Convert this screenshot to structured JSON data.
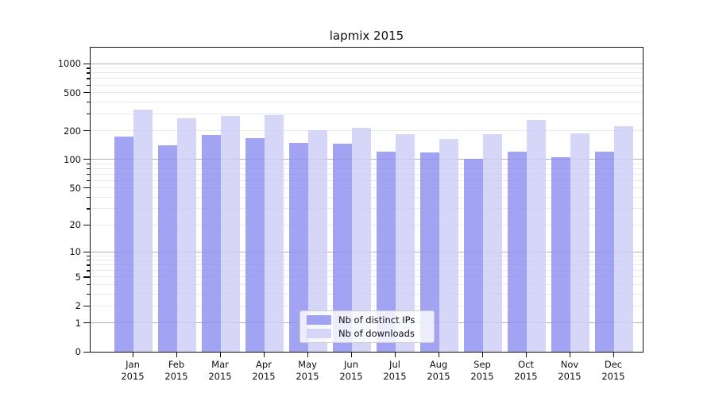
{
  "title": "lapmix 2015",
  "chart_data": {
    "type": "bar",
    "title": "lapmix 2015",
    "scale": "log1p",
    "xlabel": "",
    "ylabel": "",
    "ylim": [
      0,
      1500
    ],
    "grid": true,
    "legend_position": "lower center",
    "year": "2015",
    "categories": [
      "Jan",
      "Feb",
      "Mar",
      "Apr",
      "May",
      "Jun",
      "Jul",
      "Aug",
      "Sep",
      "Oct",
      "Nov",
      "Dec"
    ],
    "series": [
      {
        "name": "Nb of distinct IPs",
        "color": "#8f8ff0",
        "values": [
          172,
          141,
          181,
          168,
          148,
          146,
          121,
          118,
          101,
          121,
          105,
          120
        ]
      },
      {
        "name": "Nb of downloads",
        "color": "#cdcdf6",
        "values": [
          330,
          271,
          287,
          293,
          203,
          213,
          183,
          164,
          183,
          261,
          186,
          224
        ]
      }
    ],
    "y_ticks": [
      0,
      1,
      2,
      5,
      10,
      20,
      50,
      100,
      200,
      500,
      1000
    ],
    "y_major_gridlines": [
      1,
      10,
      100,
      1000
    ],
    "y_minor_gridline_decades": [
      1,
      10,
      100
    ]
  }
}
